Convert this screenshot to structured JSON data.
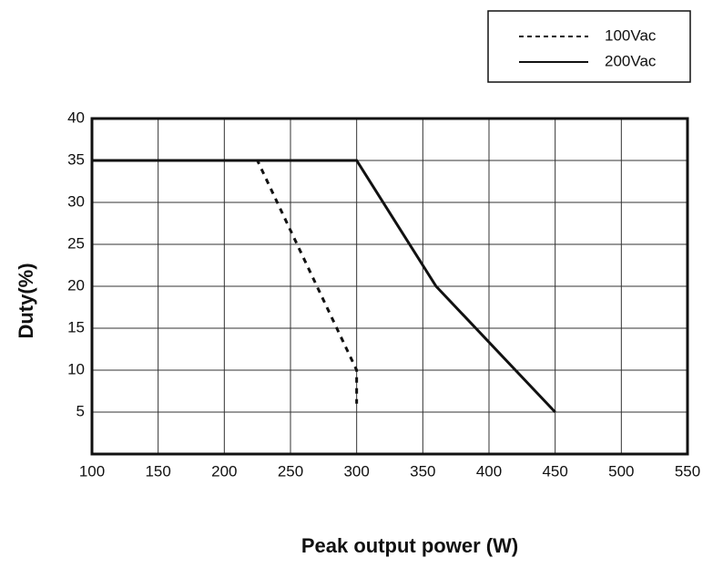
{
  "chart_data": {
    "type": "line",
    "xlabel": "Peak output power (W)",
    "ylabel": "Duty(%)",
    "xlim": [
      100,
      550
    ],
    "xticks": [
      100,
      150,
      200,
      250,
      300,
      350,
      400,
      450,
      500,
      550
    ],
    "ylim": [
      0,
      40
    ],
    "yticks": [
      5,
      10,
      15,
      20,
      25,
      30,
      35,
      40
    ],
    "grid": true,
    "legend": "top-right",
    "series": [
      {
        "name": "100Vac",
        "color": "#111111",
        "line_style": "dashed",
        "x": [
          100,
          225,
          300,
          300
        ],
        "values": [
          35,
          35,
          10,
          6
        ]
      },
      {
        "name": "200Vac",
        "color": "#111111",
        "line_style": "solid",
        "x": [
          100,
          300,
          360,
          450
        ],
        "values": [
          35,
          35,
          20,
          5
        ]
      }
    ]
  }
}
